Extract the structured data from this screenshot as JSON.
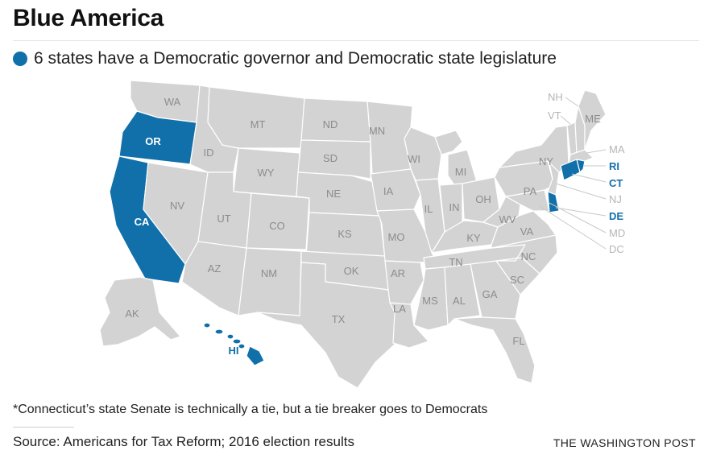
{
  "title": "Blue America",
  "legend": {
    "label": "6 states have a Democratic governor and Democratic state legislature",
    "color": "#1170aa"
  },
  "map": {
    "blue_color": "#1170aa",
    "gray_color": "#d3d3d3",
    "states": {
      "WA": "WA",
      "OR": "OR",
      "CA": "CA",
      "NV": "NV",
      "ID": "ID",
      "MT": "MT",
      "WY": "WY",
      "UT": "UT",
      "AZ": "AZ",
      "CO": "CO",
      "NM": "NM",
      "ND": "ND",
      "SD": "SD",
      "NE": "NE",
      "KS": "KS",
      "OK": "OK",
      "TX": "TX",
      "MN": "MN",
      "IA": "IA",
      "MO": "MO",
      "AR": "AR",
      "LA": "LA",
      "WI": "WI",
      "IL": "IL",
      "MI": "MI",
      "IN": "IN",
      "OH": "OH",
      "KY": "KY",
      "TN": "TN",
      "MS": "MS",
      "AL": "AL",
      "GA": "GA",
      "FL": "FL",
      "SC": "SC",
      "NC": "NC",
      "VA": "VA",
      "WV": "WV",
      "PA": "PA",
      "NY": "NY",
      "VT": "VT",
      "NH": "NH",
      "ME": "ME",
      "MA": "MA",
      "RI": "RI",
      "CT": "CT",
      "NJ": "NJ",
      "DE": "DE",
      "MD": "MD",
      "DC": "DC",
      "AK": "AK",
      "HI": "HI"
    },
    "blue_states": [
      "OR",
      "CA",
      "HI",
      "RI",
      "CT",
      "DE"
    ]
  },
  "footnote": "*Connecticut’s state Senate is technically a tie, but a tie breaker goes to Democrats",
  "source": "Source: Americans for Tax Reform; 2016 election results",
  "credit": "THE WASHINGTON POST"
}
